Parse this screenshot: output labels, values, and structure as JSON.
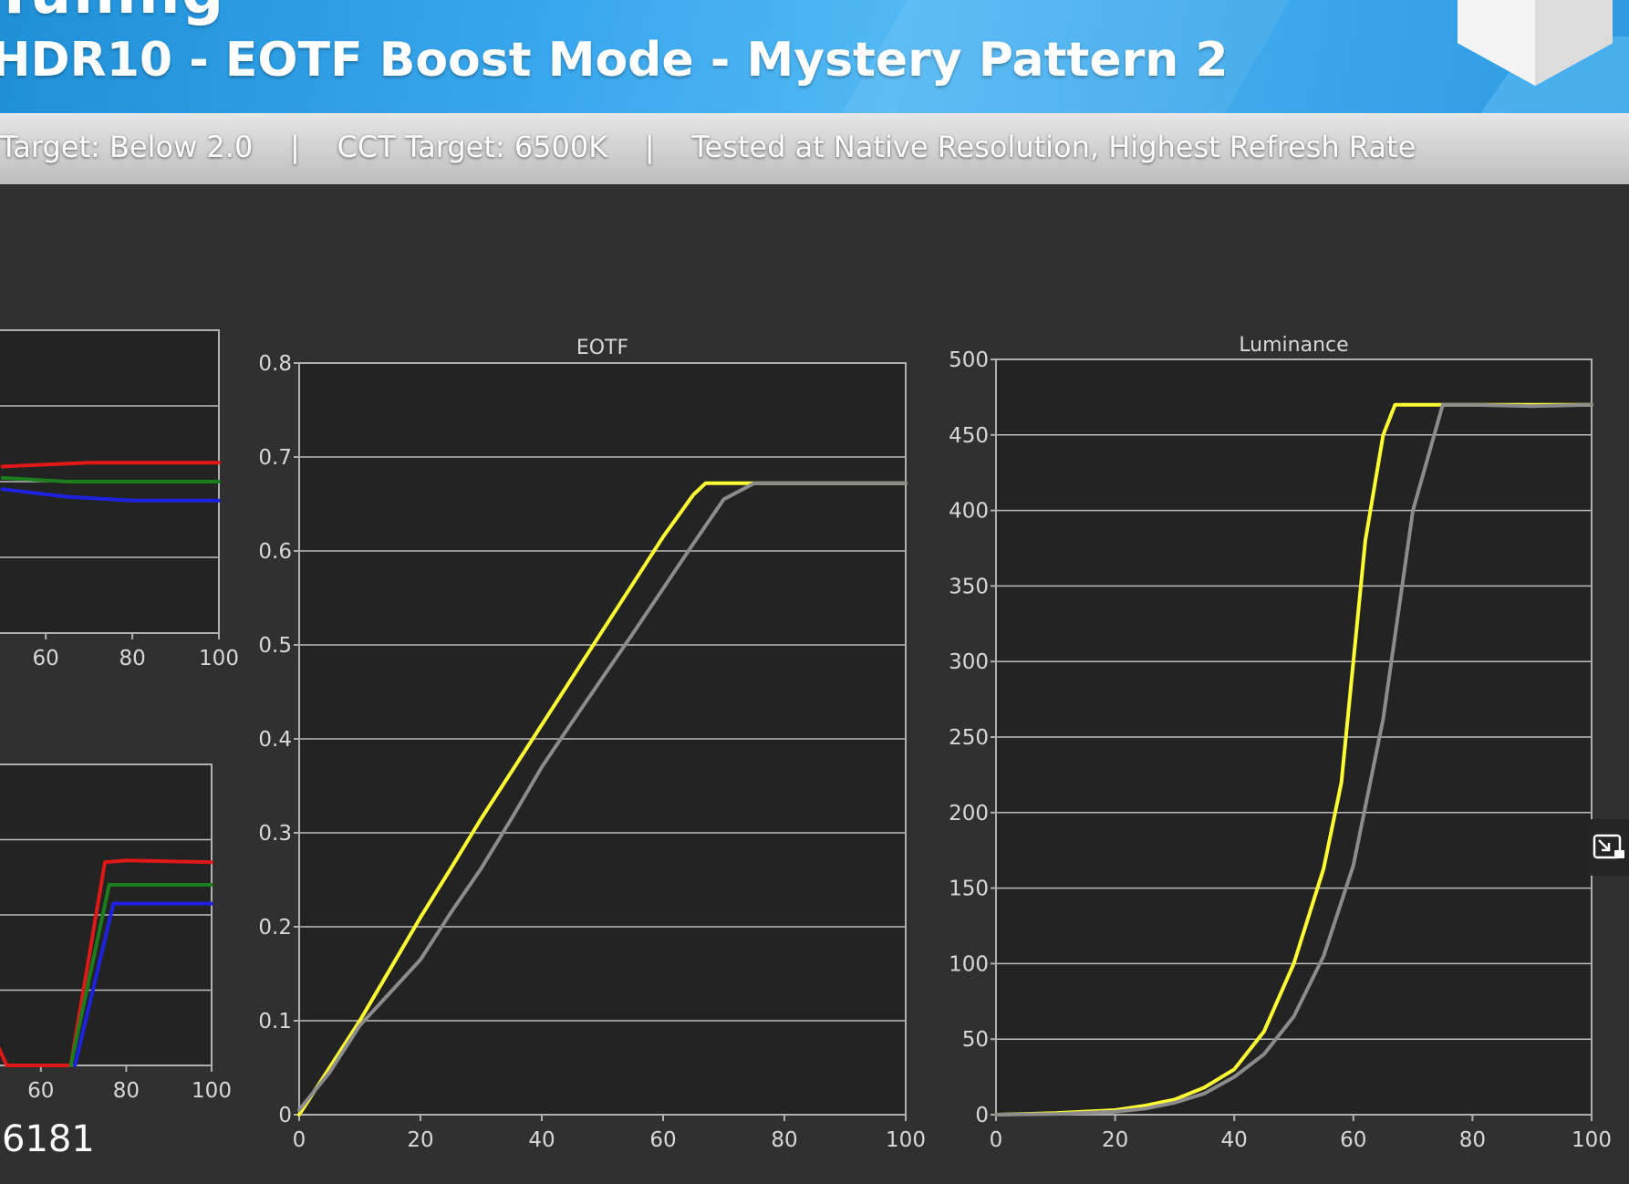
{
  "banner": {
    "title_fragment": "Tuning",
    "subtitle": "HDR10 - EOTF Boost Mode - Mystery Pattern 2"
  },
  "info_bar": {
    "text": "Target: Below 2.0    |    CCT Target: 6500K    |    Tested at Native Resolution, Highest Refresh Rate"
  },
  "bottom_value": "6181",
  "colors": {
    "background": "#303030",
    "plot_background": "#232323",
    "measured": "#ffff33",
    "target": "#8c8c8c",
    "red": "#e01818",
    "green": "#1b7d1b",
    "blue": "#1d22e0"
  },
  "chart_data": [
    {
      "type": "line",
      "title": "EOTF",
      "xlim": [
        0,
        100
      ],
      "ylim": [
        0,
        0.8
      ],
      "xticks": [
        "0",
        "20",
        "40",
        "60",
        "80",
        "100"
      ],
      "yticks": [
        "0",
        "0.1",
        "0.2",
        "0.3",
        "0.4",
        "0.5",
        "0.6",
        "0.7",
        "0.8"
      ],
      "grid": true,
      "series": [
        {
          "color": "#ffff33",
          "x": [
            0,
            5,
            10,
            15,
            20,
            25,
            30,
            35,
            40,
            45,
            50,
            55,
            60,
            65,
            67,
            70,
            75,
            100
          ],
          "y": [
            0,
            0.05,
            0.1,
            0.155,
            0.21,
            0.262,
            0.315,
            0.365,
            0.415,
            0.465,
            0.515,
            0.565,
            0.615,
            0.66,
            0.672,
            0.672,
            0.672,
            0.672
          ]
        },
        {
          "color": "#8c8c8c",
          "x": [
            0,
            5,
            10,
            15,
            20,
            25,
            30,
            35,
            40,
            45,
            50,
            55,
            60,
            65,
            70,
            75,
            100
          ],
          "y": [
            0.005,
            0.045,
            0.095,
            0.13,
            0.165,
            0.215,
            0.262,
            0.315,
            0.37,
            0.418,
            0.465,
            0.512,
            0.56,
            0.608,
            0.655,
            0.672,
            0.672
          ]
        }
      ]
    },
    {
      "type": "line",
      "title": "Luminance",
      "xlim": [
        0,
        100
      ],
      "ylim": [
        0,
        500
      ],
      "xticks": [
        "0",
        "20",
        "40",
        "60",
        "80",
        "100"
      ],
      "yticks": [
        "0",
        "50",
        "100",
        "150",
        "200",
        "250",
        "300",
        "350",
        "400",
        "450",
        "500"
      ],
      "grid": true,
      "series": [
        {
          "color": "#ffff33",
          "x": [
            0,
            10,
            20,
            25,
            30,
            35,
            40,
            45,
            50,
            55,
            58,
            60,
            62,
            65,
            67,
            70,
            75,
            100
          ],
          "y": [
            0,
            1,
            3,
            6,
            10,
            18,
            30,
            55,
            100,
            163,
            220,
            300,
            380,
            450,
            470,
            470,
            470,
            470
          ]
        },
        {
          "color": "#8c8c8c",
          "x": [
            0,
            10,
            20,
            25,
            30,
            35,
            40,
            45,
            50,
            55,
            60,
            65,
            70,
            75,
            80,
            90,
            100
          ],
          "y": [
            0,
            0.5,
            2,
            4,
            8,
            14,
            25,
            40,
            65,
            105,
            165,
            262,
            400,
            470,
            470,
            469,
            470
          ]
        }
      ]
    },
    {
      "type": "line",
      "title": "",
      "xticks": [
        "60",
        "80",
        "100"
      ],
      "grid": true,
      "series": [
        {
          "color": "#e01818",
          "x": [
            50,
            70,
            100
          ],
          "y": [
            0.44,
            0.45,
            0.45
          ]
        },
        {
          "color": "#1b7d1b",
          "x": [
            50,
            65,
            100
          ],
          "y": [
            0.41,
            0.4,
            0.4
          ]
        },
        {
          "color": "#1d22e0",
          "x": [
            50,
            65,
            80,
            100
          ],
          "y": [
            0.38,
            0.36,
            0.35,
            0.35
          ]
        }
      ]
    },
    {
      "type": "line",
      "title": "",
      "xticks": [
        "60",
        "80",
        "100"
      ],
      "grid": true,
      "series": [
        {
          "color": "#e01818",
          "x": [
            50,
            52,
            67,
            75,
            80,
            100
          ],
          "y": [
            0.05,
            0,
            0,
            0.54,
            0.545,
            0.54
          ]
        },
        {
          "color": "#1b7d1b",
          "x": [
            67,
            76,
            80,
            100
          ],
          "y": [
            0,
            0.48,
            0.48,
            0.48
          ]
        },
        {
          "color": "#1d22e0",
          "x": [
            68,
            77,
            80,
            100
          ],
          "y": [
            0,
            0.43,
            0.43,
            0.43
          ]
        }
      ]
    }
  ]
}
